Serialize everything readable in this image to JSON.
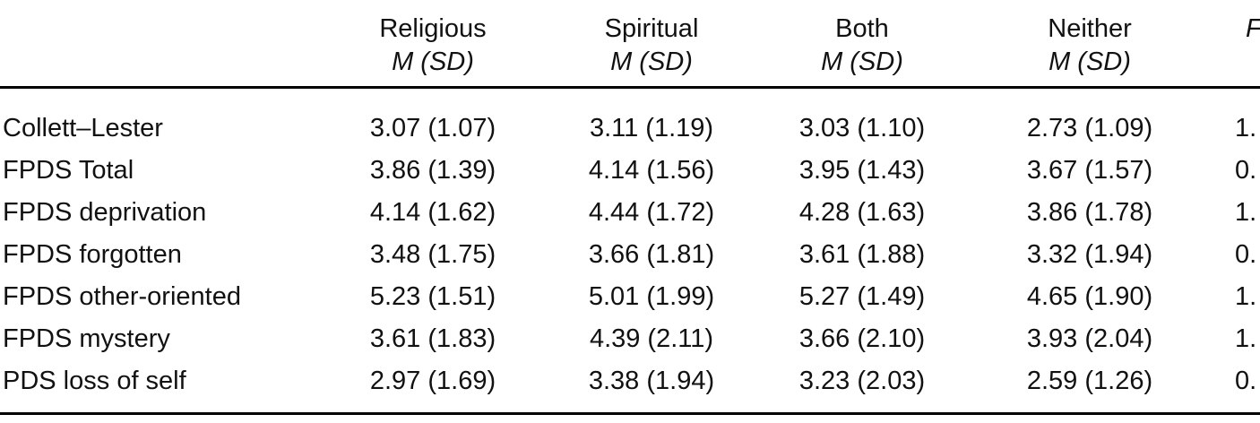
{
  "table": {
    "columns": [
      {
        "label": "Religious",
        "sub": "M (SD)"
      },
      {
        "label": "Spiritual",
        "sub": "M (SD)"
      },
      {
        "label": "Both",
        "sub": "M (SD)"
      },
      {
        "label": "Neither",
        "sub": "M (SD)"
      },
      {
        "label": "",
        "sub": "F"
      }
    ],
    "rows": [
      {
        "label": "Collett–Lester",
        "values": [
          "3.07 (1.07)",
          "3.11 (1.19)",
          "3.03 (1.10)",
          "2.73 (1.09)",
          "1."
        ]
      },
      {
        "label": "FPDS Total",
        "values": [
          "3.86 (1.39)",
          "4.14 (1.56)",
          "3.95 (1.43)",
          "3.67 (1.57)",
          "0."
        ]
      },
      {
        "label": "FPDS deprivation",
        "values": [
          "4.14 (1.62)",
          "4.44 (1.72)",
          "4.28 (1.63)",
          "3.86 (1.78)",
          "1."
        ]
      },
      {
        "label": "FPDS forgotten",
        "values": [
          "3.48 (1.75)",
          "3.66 (1.81)",
          "3.61 (1.88)",
          "3.32 (1.94)",
          "0."
        ]
      },
      {
        "label": "FPDS other-oriented",
        "values": [
          "5.23 (1.51)",
          "5.01 (1.99)",
          "5.27 (1.49)",
          "4.65 (1.90)",
          "1."
        ]
      },
      {
        "label": "FPDS mystery",
        "values": [
          "3.61 (1.83)",
          "4.39 (2.11)",
          "3.66 (2.10)",
          "3.93 (2.04)",
          "1."
        ]
      },
      {
        "label": "PDS loss of self",
        "values": [
          "2.97 (1.69)",
          "3.38 (1.94)",
          "3.23 (2.03)",
          "2.59 (1.26)",
          "0."
        ]
      }
    ]
  }
}
